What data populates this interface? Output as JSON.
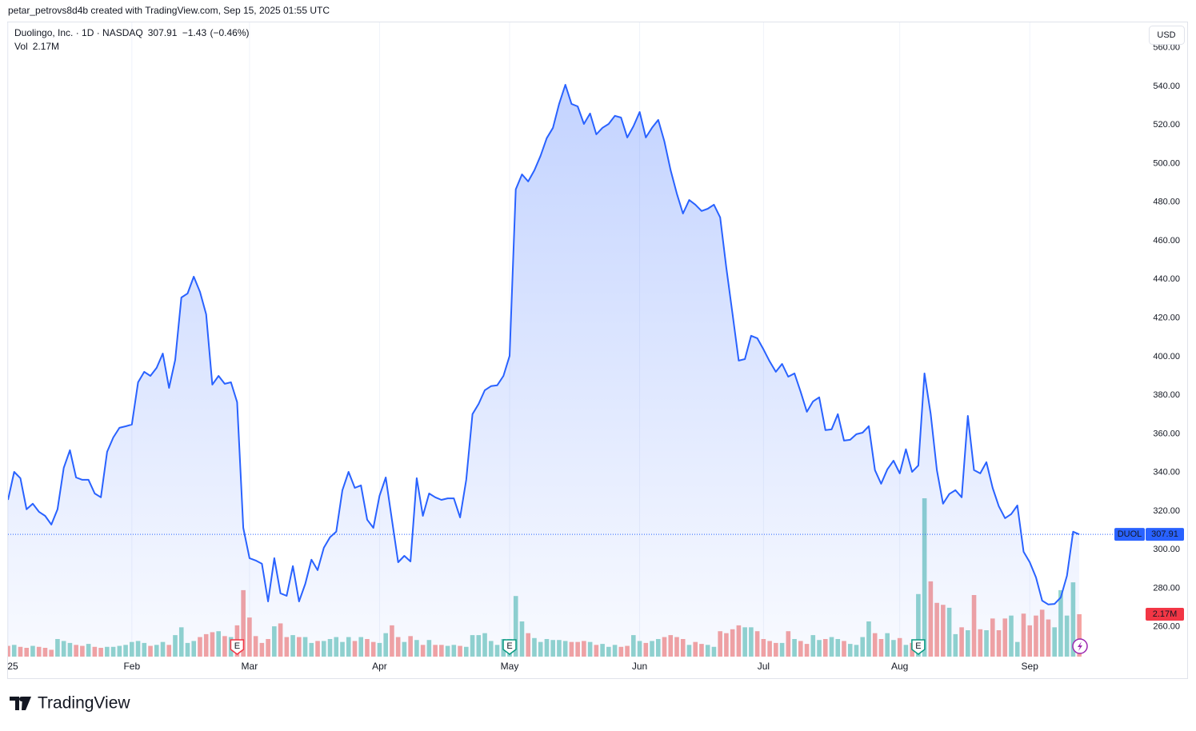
{
  "header": {
    "credit": "petar_petrovs8d4b created with TradingView.com, Sep 15, 2025 01:55 UTC"
  },
  "chart_data": {
    "type": "area",
    "symbol": "DUOL",
    "currency": "USD",
    "change": "−1.43",
    "change_percent": "(−0.46%)",
    "series": [
      {
        "name": "Duolingo, Inc. · 1D · NASDAQ",
        "color": "#2962ff",
        "values": [
          325.8,
          340.3,
          337,
          320.9,
          323.8,
          319.6,
          317.5,
          313,
          320.9,
          342.4,
          351.5,
          337.4,
          336.2,
          336.2,
          329.1,
          327.1,
          350.7,
          358.1,
          363.1,
          363.9,
          364.8,
          386.7,
          392.1,
          390,
          394.2,
          401.6,
          383.8,
          398.3,
          430.6,
          432.7,
          441.4,
          433.5,
          421.9,
          385.5,
          390,
          385.9,
          386.7,
          376.4,
          311.3,
          295.6,
          294.4,
          292.7,
          273.2,
          295.6,
          277.4,
          276.1,
          291.5,
          273.2,
          282.3,
          294.8,
          289.4,
          301,
          306.4,
          309.3,
          330.8,
          340.3,
          332,
          333.3,
          315.5,
          311.3,
          327.9,
          337.4,
          315.5,
          293.5,
          296.8,
          293.9,
          337,
          317.5,
          329.1,
          327.1,
          325.8,
          326.6,
          326.6,
          316.7,
          336.2,
          370.2,
          375.5,
          382.6,
          384.7,
          385.1,
          390,
          400.4,
          486.6,
          494.4,
          490.7,
          496.5,
          504,
          513.1,
          518.5,
          530.9,
          540.8,
          530.9,
          529.6,
          520.5,
          525.9,
          515.1,
          518.5,
          520.5,
          524.7,
          523.8,
          513.5,
          519.3,
          526.7,
          513.5,
          518.5,
          522.6,
          511.4,
          496.5,
          484.5,
          474.1,
          481.1,
          478.7,
          475.4,
          476.6,
          478.7,
          472.1,
          446,
          422,
          397.9,
          398.7,
          410.8,
          409.5,
          403.7,
          397.5,
          392.1,
          396.2,
          389.6,
          391.3,
          381.8,
          371.4,
          376.8,
          378.9,
          361.9,
          362.3,
          370.2,
          356.5,
          356.9,
          359.8,
          360.6,
          364,
          341.2,
          334.1,
          341.6,
          346.1,
          339.5,
          352,
          340.3,
          343.6,
          391.3,
          370.2,
          341.2,
          323.8,
          328.8,
          330.8,
          327.1,
          369.3,
          341.2,
          339.5,
          345.3,
          332,
          322.5,
          316.3,
          318.4,
          322.9,
          298.9,
          293.5,
          285.6,
          273.6,
          271.6,
          271.9,
          275.2,
          286.5,
          309.3,
          307.91
        ]
      },
      {
        "name": "Vol",
        "up_color": "#92d4cd",
        "down_color": "#f5a3a1",
        "label_color": "#f23645",
        "last_value_label": "2.17M",
        "values": [
          0.55,
          0.6,
          0.5,
          0.45,
          0.55,
          0.5,
          0.45,
          0.35,
          0.9,
          0.8,
          0.7,
          0.6,
          0.55,
          0.65,
          0.5,
          0.45,
          0.5,
          0.5,
          0.55,
          0.6,
          0.75,
          0.8,
          0.7,
          0.55,
          0.6,
          0.75,
          0.6,
          1.1,
          1.5,
          0.7,
          0.8,
          1.0,
          1.15,
          1.25,
          1.3,
          1.05,
          1.0,
          1.6,
          3.4,
          2.0,
          1.05,
          0.7,
          0.9,
          1.55,
          1.7,
          1.0,
          1.1,
          1.0,
          1.0,
          0.7,
          0.8,
          0.8,
          0.9,
          1.0,
          0.75,
          1.0,
          0.8,
          1.0,
          0.9,
          0.75,
          0.7,
          1.2,
          1.6,
          1.0,
          0.75,
          1.05,
          0.85,
          0.6,
          0.85,
          0.6,
          0.6,
          0.55,
          0.6,
          0.55,
          0.5,
          1.1,
          1.1,
          1.2,
          0.8,
          0.6,
          0.9,
          0.9,
          3.1,
          1.8,
          1.2,
          0.95,
          0.75,
          0.9,
          0.85,
          0.85,
          0.8,
          0.75,
          0.75,
          0.8,
          0.75,
          0.6,
          0.65,
          0.5,
          0.6,
          0.5,
          0.55,
          1.1,
          0.8,
          0.7,
          0.8,
          0.9,
          1.0,
          1.1,
          1.0,
          0.9,
          0.6,
          0.75,
          0.65,
          0.6,
          0.5,
          1.3,
          1.2,
          1.4,
          1.6,
          1.5,
          1.5,
          1.3,
          0.9,
          0.8,
          0.7,
          0.7,
          1.3,
          0.9,
          0.8,
          0.65,
          1.1,
          0.85,
          0.9,
          1.0,
          0.9,
          0.8,
          0.65,
          0.6,
          1.0,
          1.8,
          1.2,
          0.9,
          1.2,
          0.85,
          0.95,
          0.6,
          0.7,
          3.2,
          8.1,
          3.85,
          2.75,
          2.65,
          2.5,
          1.15,
          1.5,
          1.35,
          3.15,
          1.4,
          1.35,
          1.95,
          1.35,
          1.95,
          2.1,
          0.75,
          2.2,
          1.6,
          2.1,
          2.4,
          1.9,
          1.5,
          3.4,
          2.1,
          3.8,
          2.17
        ]
      }
    ],
    "events": [
      {
        "index": 37,
        "label": "E",
        "color": "#f23645"
      },
      {
        "index": 81,
        "label": "E",
        "color": "#089981"
      },
      {
        "index": 147,
        "label": "E",
        "color": "#089981"
      }
    ],
    "xlim": [
      0,
      182.8
    ],
    "xticks": [
      {
        "value": 0,
        "label": "25"
      },
      {
        "value": 20,
        "label": "Feb"
      },
      {
        "value": 39,
        "label": "Mar"
      },
      {
        "value": 60,
        "label": "Apr"
      },
      {
        "value": 81,
        "label": "May"
      },
      {
        "value": 102,
        "label": "Jun"
      },
      {
        "value": 122,
        "label": "Jul"
      },
      {
        "value": 144,
        "label": "Aug"
      },
      {
        "value": 165,
        "label": "Sep"
      }
    ],
    "ylim": [
      244.6,
      573.1
    ],
    "yticks": [
      {
        "value": 260,
        "label": "260.00"
      },
      {
        "value": 280,
        "label": "280.00"
      },
      {
        "value": 300,
        "label": "300.00"
      },
      {
        "value": 320,
        "label": "320.00"
      },
      {
        "value": 340,
        "label": "340.00"
      },
      {
        "value": 360,
        "label": "360.00"
      },
      {
        "value": 380,
        "label": "380.00"
      },
      {
        "value": 400,
        "label": "400.00"
      },
      {
        "value": 420,
        "label": "420.00"
      },
      {
        "value": 440,
        "label": "440.00"
      },
      {
        "value": 460,
        "label": "460.00"
      },
      {
        "value": 480,
        "label": "480.00"
      },
      {
        "value": 500,
        "label": "500.00"
      },
      {
        "value": 520,
        "label": "520.00"
      },
      {
        "value": 540,
        "label": "540.00"
      },
      {
        "value": 560,
        "label": "560.00"
      }
    ],
    "grid": "vertical"
  },
  "footer": {
    "brand": "TradingView"
  }
}
